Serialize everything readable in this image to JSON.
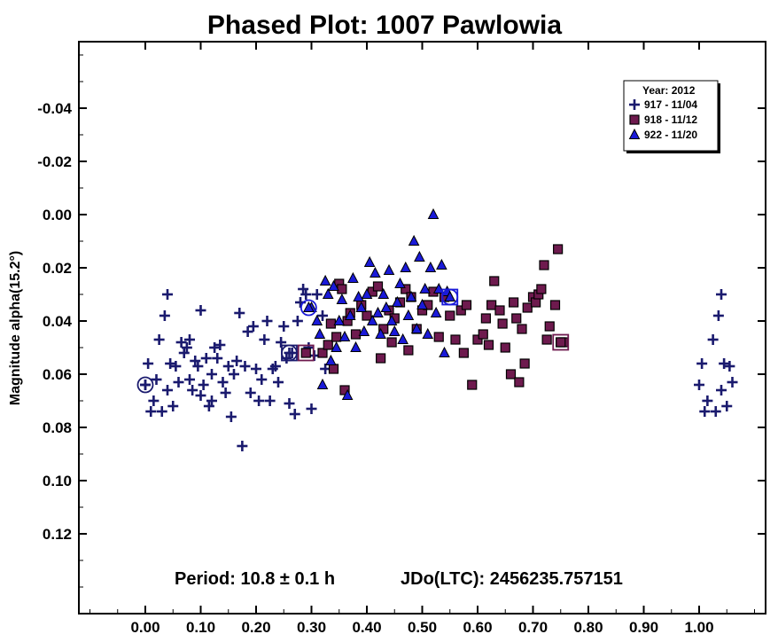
{
  "chart_data": {
    "type": "scatter",
    "title": "Phased Plot: 1007 Pawlowia",
    "xlabel": "",
    "ylabel": "Magnitude alpha(15.2°)",
    "xlim": [
      -0.12,
      1.12
    ],
    "ylim": [
      0.15,
      -0.065
    ],
    "y_inverted": true,
    "x_ticks": [
      0.0,
      0.1,
      0.2,
      0.3,
      0.4,
      0.5,
      0.6,
      0.7,
      0.8,
      0.9,
      1.0
    ],
    "x_tick_labels": [
      "0.00",
      "0.10",
      "0.20",
      "0.30",
      "0.40",
      "0.50",
      "0.60",
      "0.70",
      "0.80",
      "0.90",
      "1.00"
    ],
    "y_ticks": [
      -0.04,
      -0.02,
      0.0,
      0.02,
      0.04,
      0.06,
      0.08,
      0.1,
      0.12
    ],
    "y_tick_labels": [
      "-0.04",
      "-0.02",
      "0.00",
      "0.02",
      "0.04",
      "0.06",
      "0.08",
      "0.10",
      "0.12"
    ],
    "grid": false,
    "legend": {
      "title": "Year: 2012",
      "placement": "top-right"
    },
    "annotations": {
      "period": "Period: 10.8 ± 0.1 h",
      "jdo": "JDo(LTC): 2456235.757151"
    },
    "series": [
      {
        "name": "917 - 11/04",
        "marker": "plus",
        "color": "#1a1a6e",
        "points": [
          [
            0.0,
            0.064
          ],
          [
            0.005,
            0.056
          ],
          [
            0.01,
            0.074
          ],
          [
            0.015,
            0.07
          ],
          [
            0.02,
            0.062
          ],
          [
            0.025,
            0.047
          ],
          [
            0.03,
            0.074
          ],
          [
            0.035,
            0.038
          ],
          [
            0.04,
            0.03
          ],
          [
            0.04,
            0.066
          ],
          [
            0.045,
            0.056
          ],
          [
            0.05,
            0.072
          ],
          [
            0.055,
            0.057
          ],
          [
            0.06,
            0.063
          ],
          [
            0.065,
            0.048
          ],
          [
            0.07,
            0.052
          ],
          [
            0.075,
            0.05
          ],
          [
            0.08,
            0.062
          ],
          [
            0.08,
            0.047
          ],
          [
            0.085,
            0.066
          ],
          [
            0.09,
            0.055
          ],
          [
            0.095,
            0.057
          ],
          [
            0.1,
            0.068
          ],
          [
            0.1,
            0.036
          ],
          [
            0.105,
            0.064
          ],
          [
            0.11,
            0.054
          ],
          [
            0.115,
            0.072
          ],
          [
            0.12,
            0.07
          ],
          [
            0.12,
            0.06
          ],
          [
            0.125,
            0.05
          ],
          [
            0.13,
            0.054
          ],
          [
            0.135,
            0.049
          ],
          [
            0.14,
            0.063
          ],
          [
            0.145,
            0.067
          ],
          [
            0.15,
            0.057
          ],
          [
            0.155,
            0.076
          ],
          [
            0.16,
            0.06
          ],
          [
            0.165,
            0.055
          ],
          [
            0.17,
            0.037
          ],
          [
            0.175,
            0.087
          ],
          [
            0.18,
            0.057
          ],
          [
            0.185,
            0.044
          ],
          [
            0.19,
            0.067
          ],
          [
            0.195,
            0.042
          ],
          [
            0.2,
            0.058
          ],
          [
            0.205,
            0.07
          ],
          [
            0.21,
            0.062
          ],
          [
            0.215,
            0.047
          ],
          [
            0.22,
            0.04
          ],
          [
            0.225,
            0.07
          ],
          [
            0.23,
            0.058
          ],
          [
            0.235,
            0.057
          ],
          [
            0.24,
            0.063
          ],
          [
            0.245,
            0.048
          ],
          [
            0.25,
            0.042
          ],
          [
            0.255,
            0.054
          ],
          [
            0.26,
            0.071
          ],
          [
            0.265,
            0.052
          ],
          [
            0.27,
            0.075
          ],
          [
            0.275,
            0.04
          ],
          [
            0.28,
            0.033
          ],
          [
            0.285,
            0.028
          ],
          [
            0.29,
            0.03
          ],
          [
            0.295,
            0.05
          ],
          [
            0.3,
            0.073
          ],
          [
            0.305,
            0.053
          ],
          [
            0.31,
            0.03
          ],
          [
            0.32,
            0.038
          ],
          [
            0.325,
            0.058
          ],
          [
            1.0,
            0.064
          ],
          [
            1.005,
            0.056
          ],
          [
            1.01,
            0.074
          ],
          [
            1.015,
            0.07
          ],
          [
            1.025,
            0.047
          ],
          [
            1.03,
            0.074
          ],
          [
            1.035,
            0.038
          ],
          [
            1.04,
            0.03
          ],
          [
            1.04,
            0.066
          ],
          [
            1.045,
            0.056
          ],
          [
            1.05,
            0.072
          ],
          [
            1.055,
            0.057
          ],
          [
            1.06,
            0.063
          ]
        ]
      },
      {
        "name": "918 - 11/12",
        "marker": "square",
        "color": "#6e1a4e",
        "points": [
          [
            0.32,
            0.052
          ],
          [
            0.33,
            0.049
          ],
          [
            0.335,
            0.041
          ],
          [
            0.34,
            0.058
          ],
          [
            0.345,
            0.046
          ],
          [
            0.35,
            0.026
          ],
          [
            0.355,
            0.028
          ],
          [
            0.36,
            0.066
          ],
          [
            0.365,
            0.04
          ],
          [
            0.37,
            0.037
          ],
          [
            0.38,
            0.045
          ],
          [
            0.39,
            0.034
          ],
          [
            0.4,
            0.038
          ],
          [
            0.41,
            0.029
          ],
          [
            0.42,
            0.027
          ],
          [
            0.425,
            0.054
          ],
          [
            0.43,
            0.043
          ],
          [
            0.44,
            0.036
          ],
          [
            0.445,
            0.048
          ],
          [
            0.45,
            0.039
          ],
          [
            0.46,
            0.033
          ],
          [
            0.47,
            0.028
          ],
          [
            0.475,
            0.051
          ],
          [
            0.48,
            0.031
          ],
          [
            0.49,
            0.043
          ],
          [
            0.5,
            0.036
          ],
          [
            0.51,
            0.034
          ],
          [
            0.52,
            0.029
          ],
          [
            0.53,
            0.046
          ],
          [
            0.54,
            0.031
          ],
          [
            0.55,
            0.038
          ],
          [
            0.56,
            0.047
          ],
          [
            0.57,
            0.036
          ],
          [
            0.575,
            0.052
          ],
          [
            0.58,
            0.034
          ],
          [
            0.59,
            0.064
          ],
          [
            0.6,
            0.047
          ],
          [
            0.61,
            0.045
          ],
          [
            0.615,
            0.039
          ],
          [
            0.62,
            0.049
          ],
          [
            0.625,
            0.034
          ],
          [
            0.63,
            0.025
          ],
          [
            0.64,
            0.036
          ],
          [
            0.645,
            0.041
          ],
          [
            0.65,
            0.05
          ],
          [
            0.66,
            0.06
          ],
          [
            0.665,
            0.033
          ],
          [
            0.67,
            0.039
          ],
          [
            0.675,
            0.063
          ],
          [
            0.68,
            0.043
          ],
          [
            0.685,
            0.056
          ],
          [
            0.69,
            0.035
          ],
          [
            0.7,
            0.031
          ],
          [
            0.705,
            0.033
          ],
          [
            0.71,
            0.03
          ],
          [
            0.715,
            0.028
          ],
          [
            0.72,
            0.019
          ],
          [
            0.725,
            0.047
          ],
          [
            0.73,
            0.042
          ],
          [
            0.74,
            0.034
          ],
          [
            0.745,
            0.013
          ],
          [
            0.75,
            0.048
          ],
          [
            0.755,
            0.048
          ]
        ]
      },
      {
        "name": "922 - 11/20",
        "marker": "triangle",
        "color": "#1a1ad8",
        "points": [
          [
            0.3,
            0.035
          ],
          [
            0.31,
            0.04
          ],
          [
            0.315,
            0.045
          ],
          [
            0.32,
            0.064
          ],
          [
            0.325,
            0.025
          ],
          [
            0.33,
            0.03
          ],
          [
            0.335,
            0.055
          ],
          [
            0.34,
            0.027
          ],
          [
            0.345,
            0.05
          ],
          [
            0.35,
            0.04
          ],
          [
            0.355,
            0.032
          ],
          [
            0.36,
            0.046
          ],
          [
            0.365,
            0.068
          ],
          [
            0.37,
            0.038
          ],
          [
            0.375,
            0.024
          ],
          [
            0.38,
            0.05
          ],
          [
            0.385,
            0.031
          ],
          [
            0.39,
            0.035
          ],
          [
            0.395,
            0.044
          ],
          [
            0.4,
            0.03
          ],
          [
            0.405,
            0.018
          ],
          [
            0.41,
            0.04
          ],
          [
            0.415,
            0.022
          ],
          [
            0.42,
            0.037
          ],
          [
            0.425,
            0.045
          ],
          [
            0.43,
            0.03
          ],
          [
            0.435,
            0.035
          ],
          [
            0.44,
            0.021
          ],
          [
            0.445,
            0.04
          ],
          [
            0.45,
            0.044
          ],
          [
            0.455,
            0.033
          ],
          [
            0.46,
            0.026
          ],
          [
            0.465,
            0.047
          ],
          [
            0.47,
            0.02
          ],
          [
            0.475,
            0.038
          ],
          [
            0.48,
            0.031
          ],
          [
            0.485,
            0.01
          ],
          [
            0.49,
            0.043
          ],
          [
            0.495,
            0.016
          ],
          [
            0.5,
            0.034
          ],
          [
            0.505,
            0.028
          ],
          [
            0.51,
            0.045
          ],
          [
            0.515,
            0.02
          ],
          [
            0.52,
            0.0
          ],
          [
            0.525,
            0.037
          ],
          [
            0.53,
            0.028
          ],
          [
            0.535,
            0.019
          ],
          [
            0.54,
            0.052
          ],
          [
            0.545,
            0.029
          ],
          [
            0.55,
            0.031
          ]
        ]
      }
    ],
    "highlighted_points": [
      {
        "series": "917 - 11/04",
        "x": 0.0,
        "y": 0.064
      },
      {
        "series": "917 - 11/04",
        "x": 0.26,
        "y": 0.052
      },
      {
        "series": "918 - 11/12",
        "x": 0.29,
        "y": 0.052
      },
      {
        "series": "922 - 11/20",
        "x": 0.295,
        "y": 0.035
      },
      {
        "series": "922 - 11/20",
        "x": 0.55,
        "y": 0.031
      },
      {
        "series": "918 - 11/12",
        "x": 0.75,
        "y": 0.048
      }
    ]
  }
}
